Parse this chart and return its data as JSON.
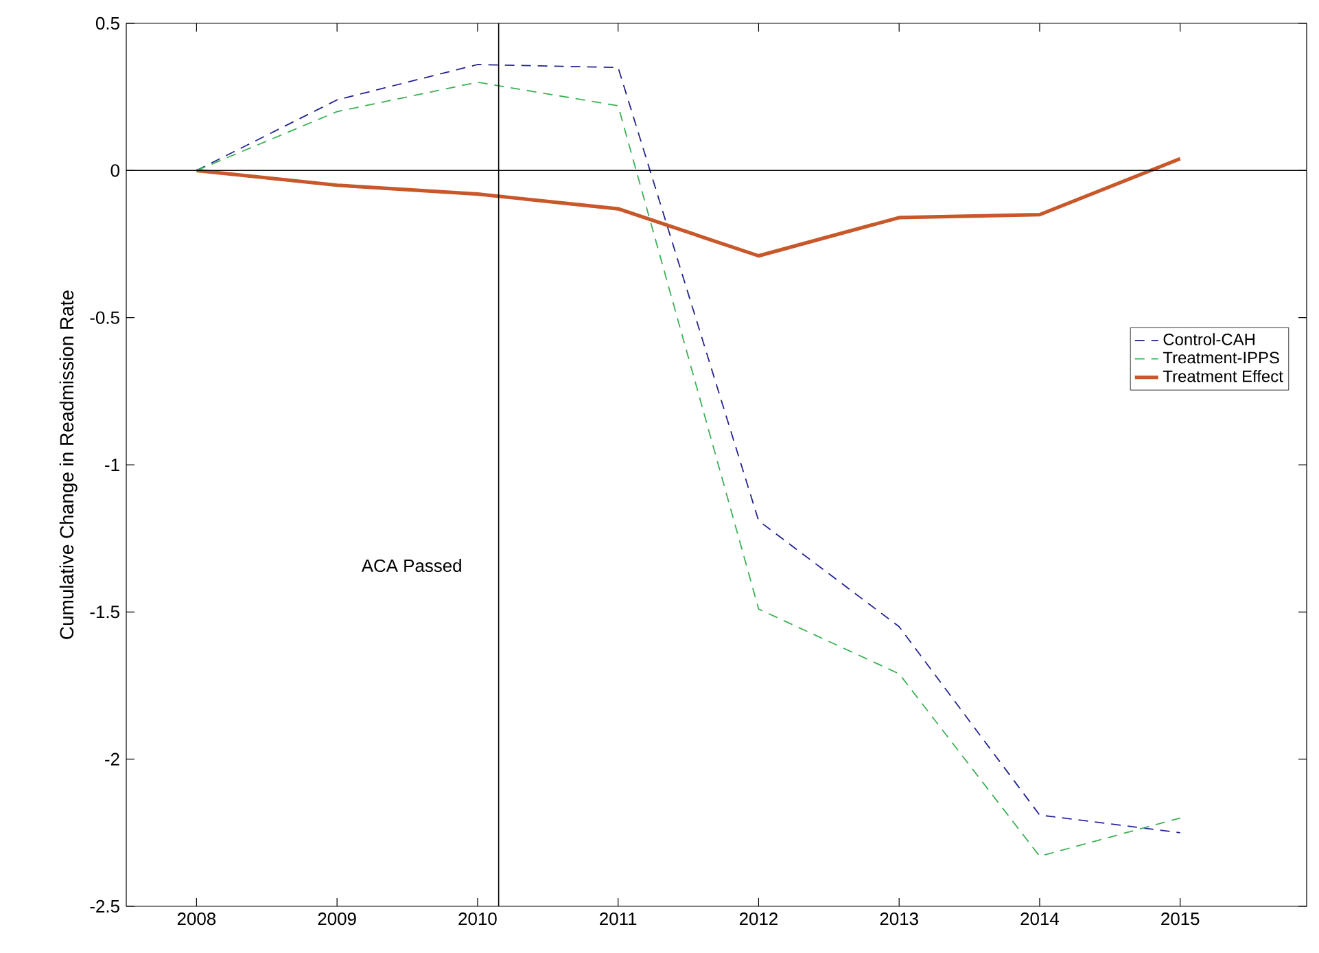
{
  "chart_data": {
    "type": "line",
    "ylabel": "Cumulative Change in Readmission Rate",
    "x": [
      2008,
      2009,
      2010,
      2011,
      2012,
      2013,
      2014,
      2015
    ],
    "series": [
      {
        "name": "Control-CAH",
        "color": "#23238f",
        "line_style": "dashed",
        "values": [
          0,
          0.24,
          0.36,
          0.35,
          -1.19,
          -1.55,
          -2.19,
          -2.25
        ]
      },
      {
        "name": "Treatment-IPPS",
        "color": "#3cb055",
        "line_style": "dashed",
        "values": [
          0,
          0.2,
          0.3,
          0.22,
          -1.49,
          -1.71,
          -2.33,
          -2.2
        ]
      },
      {
        "name": "Treatment Effect",
        "color": "#c8572a",
        "line_style": "solid",
        "values": [
          0,
          -0.05,
          -0.08,
          -0.13,
          -0.29,
          -0.16,
          -0.15,
          0.04
        ]
      }
    ],
    "xlim": [
      2007.5,
      2015.9
    ],
    "ylim": [
      -2.5,
      0.5
    ],
    "xticks": [
      2008,
      2009,
      2010,
      2011,
      2012,
      2013,
      2014,
      2015
    ],
    "yticks": [
      -2.5,
      -2,
      -1.5,
      -1,
      -0.5,
      0,
      0.5
    ],
    "ref_lines": [
      {
        "axis": "y",
        "value": 0,
        "color": "#000000"
      },
      {
        "axis": "x",
        "value": 2010.15,
        "color": "#000000",
        "label": "ACA Passed"
      }
    ],
    "legend": "right",
    "grid": false,
    "marker": "none"
  }
}
